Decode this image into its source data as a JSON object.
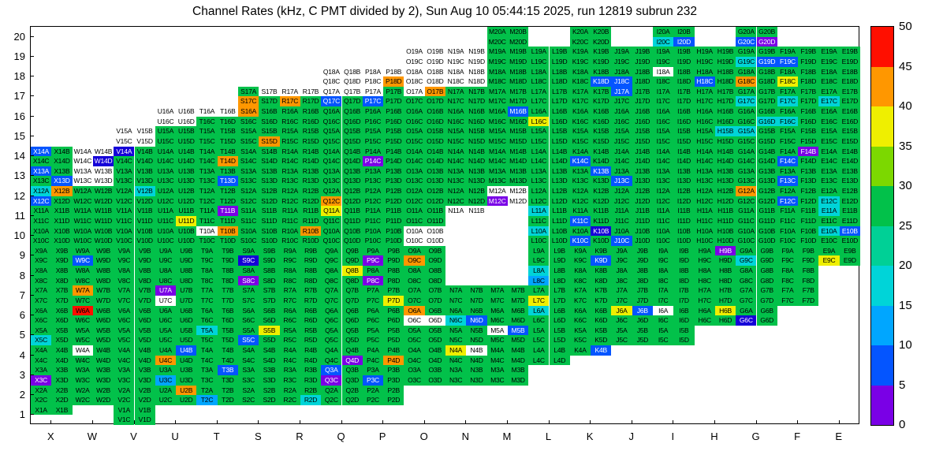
{
  "chart_data": {
    "type": "heatmap",
    "title": "Channel Rates (kHz, C PMT divided by 2), Sun Aug 10 05:44:15 2025, run 12819 subrun 232",
    "x_labels": [
      "X",
      "W",
      "V",
      "U",
      "T",
      "S",
      "R",
      "Q",
      "P",
      "O",
      "N",
      "M",
      "L",
      "K",
      "J",
      "I",
      "H",
      "G",
      "F",
      "E"
    ],
    "y_labels": [
      "20",
      "19",
      "18",
      "17",
      "16",
      "15",
      "14",
      "13",
      "12",
      "11",
      "10",
      "9",
      "8",
      "7",
      "6",
      "5",
      "4",
      "3",
      "2",
      "1"
    ],
    "channels_per_cell": [
      "A",
      "B",
      "C",
      "D"
    ],
    "channel_layout": "A top-left, B top-right, C bottom-left, D bottom-right of each module cell",
    "zrange_khz": [
      0,
      50
    ],
    "absent_code": ".",
    "palette": {
      "w": "#FFFFFF",
      "p": "#7A00E6",
      "d": "#1500D8",
      "b": "#0455FF",
      "l": "#00A6FF",
      "c": "#00D4D8",
      "g": "#02C14A",
      "y": "#EFEF00",
      "o": "#FF9700",
      "r": "#FF0F00"
    },
    "palette_value_estimate_khz": {
      "w": "0 / no data",
      "p": "0-5",
      "d": "5-8",
      "b": "8-12",
      "l": "12-15",
      "c": "15-20",
      "g": "25-30",
      "y": "35-40",
      "o": "40-45",
      "r": "45-50"
    },
    "colorbar": {
      "tick_labels": [
        "0",
        "5",
        "10",
        "15",
        "20",
        "25",
        "30",
        "35",
        "40",
        "45",
        "50"
      ],
      "bands_bottom_to_top": [
        "#7A00E6",
        "#0455FF",
        "#00A6FF",
        "#00D4D8",
        "#00D096",
        "#02C14A",
        "#7CD800",
        "#EFEF00",
        "#FF9700",
        "#FF0F00"
      ]
    },
    "cells": {
      "20": {
        "M": "gggg",
        "K": "gggg",
        "I": "ggcb",
        "G": "ggbp"
      },
      "19": {
        "O": "wwww",
        "N": "wwww",
        "M": "gggg",
        "L": "gggg",
        "K": "gggg",
        "J": "gggg",
        "I": "gggg",
        "H": "gggg",
        "G": "ggcb",
        "F": "ggbg",
        "E": "gggg"
      },
      "18": {
        "Q": "wwww",
        "P": "wwwo",
        "O": "wwww",
        "N": "wwww",
        "M": "gggg",
        "L": "gggg",
        "K": "gggb",
        "J": "ggbg",
        "I": "wggg",
        "H": "ggbg",
        "G": "ggog",
        "F": "ggyg",
        "E": "gggg"
      },
      "17": {
        "S": "gwog",
        "R": "wwog",
        "Q": "wwbg",
        "P": "wgbg",
        "O": "wogg",
        "N": "gggg",
        "M": "gggg",
        "L": "gggg",
        "K": "gggg",
        "J": "bggg",
        "I": "gggg",
        "H": "gggg",
        "G": "ggcg",
        "F": "ggcg",
        "E": "ggcg"
      },
      "16": {
        "U": "wwww",
        "T": "wwgg",
        "S": "oggg",
        "R": "gggg",
        "Q": "gggg",
        "P": "gggg",
        "O": "gggg",
        "N": "gggg",
        "M": "gbgg",
        "L": "ggyg",
        "K": "gggg",
        "J": "gggg",
        "I": "gggg",
        "H": "gggg",
        "G": "gggc",
        "F": "ggcg",
        "E": "gggg"
      },
      "15": {
        "V": "wwww",
        "U": "gggg",
        "T": "gggg",
        "S": "gggo",
        "R": "gggg",
        "Q": "gggg",
        "P": "gggg",
        "O": "gggg",
        "N": "gggg",
        "M": "gggg",
        "L": "gggg",
        "K": "gggg",
        "J": "gggg",
        "I": "gggg",
        "H": "gcgg",
        "G": "cggg",
        "F": "gggg",
        "E": "gggg"
      },
      "14": {
        "X": "bggg",
        "W": "wwwd",
        "V": "dggg",
        "U": "gggg",
        "T": "gggo",
        "S": "gggg",
        "R": "gggg",
        "Q": "gggg",
        "P": "ggpg",
        "O": "gggg",
        "N": "gggg",
        "M": "gggg",
        "L": "gggg",
        "K": "ggbg",
        "J": "gggg",
        "I": "gggg",
        "H": "gggg",
        "G": "gggg",
        "F": "gpbg",
        "E": "gggg"
      },
      "13": {
        "X": "bggb",
        "W": "wwww",
        "V": "gggg",
        "U": "gggg",
        "T": "gggb",
        "S": "gggg",
        "R": "gggg",
        "Q": "gggg",
        "P": "gggg",
        "O": "gggg",
        "N": "gggg",
        "M": "gggg",
        "L": "gggg",
        "K": "gbgg",
        "J": "ggbg",
        "I": "gggg",
        "H": "gggg",
        "G": "gggg",
        "F": "ggbg",
        "E": "gggg"
      },
      "12": {
        "X": "cobg",
        "W": "gggg",
        "V": "gcgg",
        "U": "gggg",
        "T": "gggg",
        "S": "gggg",
        "R": "gggg",
        "Q": "ggog",
        "P": "gggg",
        "O": "gggg",
        "N": "gggg",
        "M": "wwpw",
        "L": "gggg",
        "K": "gggg",
        "J": "gggg",
        "I": "gggg",
        "H": "gggg",
        "G": "oggg",
        "F": "ggbg",
        "E": "ggcg"
      },
      "11": {
        "X": "gggg",
        "W": "gggg",
        "V": "gggg",
        "U": "gggy",
        "T": "gpgg",
        "S": "gggg",
        "R": "gggg",
        "Q": "yggg",
        "P": "gggg",
        "O": "gggg",
        "N": "ww..",
        "L": "cggg",
        "K": "ggbg",
        "J": "gggg",
        "I": "gggg",
        "H": "gggg",
        "G": "gggg",
        "F": "gggg",
        "E": "cggg"
      },
      "10": {
        "X": "gggg",
        "W": "gggg",
        "V": "gggg",
        "U": "gggg",
        "T": "wogg",
        "S": "gggg",
        "R": "gogg",
        "Q": "gggg",
        "P": "gggg",
        "O": "wwww",
        "L": "cggg",
        "K": "gdbg",
        "J": "ggbg",
        "I": "gggg",
        "H": "gggg",
        "G": "gggg",
        "F": "gggg",
        "E": "cbgg"
      },
      "9": {
        "X": "gggg",
        "W": "ggbg",
        "V": "gggg",
        "U": "gggg",
        "T": "gggg",
        "S": "ggdg",
        "R": "gggg",
        "Q": "gggg",
        "P": "ggpg",
        "O": "ggog",
        "L": "gggg",
        "K": "gggb",
        "J": "gggg",
        "I": "gggg",
        "H": "gpgg",
        "G": "ggcg",
        "F": "gggg",
        "E": "ggyg"
      },
      "8": {
        "X": "gggg",
        "W": "gggg",
        "V": "gggg",
        "U": "gggg",
        "T": "gggg",
        "S": "ggpg",
        "R": "gggg",
        "Q": "gygg",
        "P": "ggpg",
        "O": "gggg",
        "L": "cglg",
        "K": "gggg",
        "J": "gggg",
        "I": "gggg",
        "H": "gggg",
        "G": "gggg",
        "F": "gggg"
      },
      "7": {
        "X": "gggg",
        "W": "oggg",
        "V": "gggg",
        "U": "pgwg",
        "T": "gggg",
        "S": "gggg",
        "R": "gggg",
        "Q": "gggg",
        "P": "gggy",
        "O": "gggg",
        "N": "gggg",
        "M": "gggg",
        "L": "ggyg",
        "K": "gggg",
        "J": "gggg",
        "I": "gggg",
        "H": "gggg",
        "G": "gggg",
        "F": "gggg"
      },
      "6": {
        "X": "gggg",
        "W": "rggg",
        "V": "gggg",
        "U": "gggg",
        "T": "gggg",
        "S": "gggg",
        "R": "gggg",
        "Q": "gggg",
        "P": "gggg",
        "O": "ogww",
        "N": "ggcb",
        "M": "gggg",
        "L": "cggg",
        "K": "gggg",
        "J": "ybgg",
        "I": "wggg",
        "H": "gygg",
        "G": "ggdg"
      },
      "5": {
        "X": "ggcg",
        "W": "gggg",
        "V": "gggg",
        "U": "gggg",
        "T": "cggg",
        "S": "gybg",
        "R": "gggg",
        "Q": "gggg",
        "P": "gggg",
        "O": "gggg",
        "N": "gggg",
        "M": "wbgg",
        "L": "gggg",
        "K": "gggg",
        "J": "gggg",
        "I": "gggg"
      },
      "4": {
        "X": "gggg",
        "W": "wggg",
        "V": "gggg",
        "U": "gbog",
        "T": "gggg",
        "S": "gggg",
        "R": "gggg",
        "Q": "gggp",
        "P": "gggo",
        "O": "gggg",
        "N": "ywgg",
        "M": "gggg",
        "L": "gggg",
        "K": "gb.."
      },
      "3": {
        "X": "ggpg",
        "W": "gggg",
        "V": "gggg",
        "U": "gglg",
        "T": "gbgg",
        "S": "gggg",
        "R": "gggg",
        "Q": "bgpg",
        "P": "ggbg",
        "O": "gggg",
        "N": "gggg",
        "M": "gggg"
      },
      "2": {
        "X": "gggg",
        "W": "gggg",
        "V": "gggg",
        "U": "gogg",
        "T": "gglg",
        "S": "gggg",
        "R": "gggc",
        "Q": "gggg",
        "P": "gggg"
      },
      "1": {
        "X": "gg..",
        "V": "gggg"
      }
    }
  }
}
